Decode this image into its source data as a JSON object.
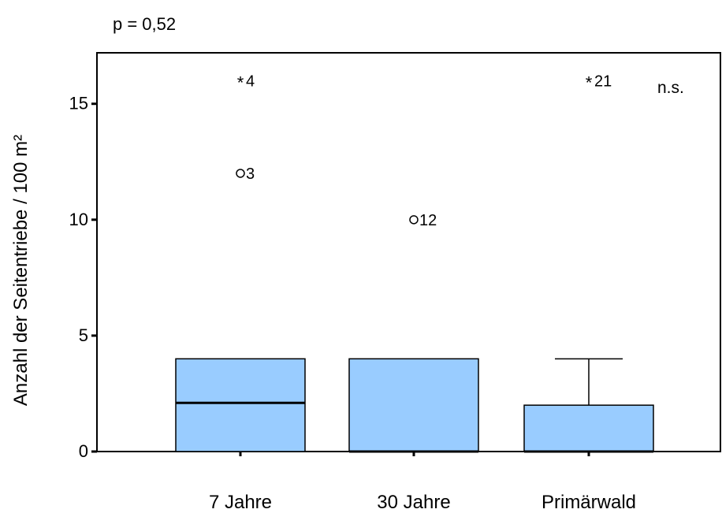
{
  "chart_data": {
    "type": "boxplot",
    "title": "p = 0,52",
    "ylabel": "Anzahl der Seitentriebe / 100 m²",
    "xlabel": "",
    "ylim": [
      0,
      17.2
    ],
    "yticks": [
      0,
      5,
      10,
      15
    ],
    "annotation": "n.s.",
    "categories": [
      "7 Jahre",
      "30 Jahre",
      "Primärwald"
    ],
    "boxes": [
      {
        "category": "7 Jahre",
        "min": 0,
        "q1": 0,
        "median": 2.1,
        "q3": 4,
        "max": 4,
        "outliers": [
          {
            "value": 12,
            "marker": "circle",
            "label": "3"
          },
          {
            "value": 16,
            "marker": "star",
            "label": "4"
          }
        ]
      },
      {
        "category": "30 Jahre",
        "min": 0,
        "q1": 0,
        "median": 0,
        "q3": 4,
        "max": 4,
        "outliers": [
          {
            "value": 10,
            "marker": "circle",
            "label": "12"
          }
        ]
      },
      {
        "category": "Primärwald",
        "min": 0,
        "q1": 0,
        "median": 0,
        "q3": 2,
        "max": 4,
        "outliers": [
          {
            "value": 16,
            "marker": "star",
            "label": "21"
          }
        ]
      }
    ],
    "box_color": "#99ccff",
    "line_color": "#000000"
  }
}
